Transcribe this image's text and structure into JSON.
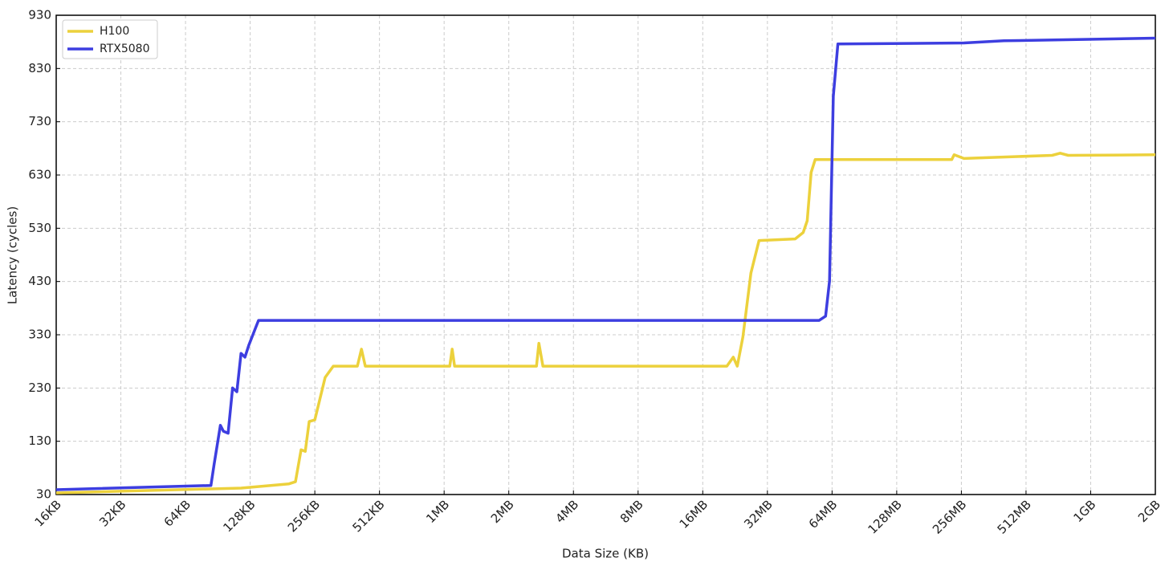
{
  "chart_data": {
    "type": "line",
    "xlabel": "Data Size (KB)",
    "ylabel": "Latency (cycles)",
    "xscale": "log",
    "grid": true,
    "legend": "upper left",
    "xlim": [
      16,
      2097152
    ],
    "ylim": [
      30,
      930
    ],
    "xticks": [
      {
        "value": 16,
        "label": "16KB"
      },
      {
        "value": 32,
        "label": "32KB"
      },
      {
        "value": 64,
        "label": "64KB"
      },
      {
        "value": 128,
        "label": "128KB"
      },
      {
        "value": 256,
        "label": "256KB"
      },
      {
        "value": 512,
        "label": "512KB"
      },
      {
        "value": 1024,
        "label": "1MB"
      },
      {
        "value": 2048,
        "label": "2MB"
      },
      {
        "value": 4096,
        "label": "4MB"
      },
      {
        "value": 8192,
        "label": "8MB"
      },
      {
        "value": 16384,
        "label": "16MB"
      },
      {
        "value": 32768,
        "label": "32MB"
      },
      {
        "value": 65536,
        "label": "64MB"
      },
      {
        "value": 131072,
        "label": "128MB"
      },
      {
        "value": 262144,
        "label": "256MB"
      },
      {
        "value": 524288,
        "label": "512MB"
      },
      {
        "value": 1048576,
        "label": "1GB"
      },
      {
        "value": 2097152,
        "label": "2GB"
      }
    ],
    "yticks": [
      30,
      130,
      230,
      330,
      430,
      530,
      630,
      730,
      830,
      930
    ],
    "series": [
      {
        "name": "H100",
        "color": "#ecd13c",
        "x": [
          16,
          116,
          194,
          208,
          221,
          231,
          241,
          256,
          286,
          312,
          404,
          422,
          440,
          1088,
          1116,
          1145,
          2757,
          2829,
          2953,
          21220,
          22720,
          23730,
          25200,
          27460,
          29950,
          44110,
          48080,
          50190,
          52390,
          54690,
          236400,
          242500,
          269340,
          693600,
          756000,
          823800,
          2097152
        ],
        "values": [
          33,
          42,
          50,
          54,
          114,
          111,
          167,
          170,
          250,
          271,
          271,
          303,
          271,
          271,
          303,
          271,
          271,
          314,
          271,
          271,
          288,
          271,
          326,
          446,
          507,
          510,
          522,
          544,
          635,
          659,
          659,
          668,
          661,
          667,
          671,
          667,
          668
        ]
      },
      {
        "name": "RTX5080",
        "color": "#3d3ee0",
        "x": [
          16,
          84,
          87,
          93,
          96,
          101,
          106,
          111,
          116,
          121,
          126,
          135,
          140,
          57060,
          61150,
          63760,
          66440,
          69740,
          269340,
          414080,
          2097152
        ],
        "values": [
          39,
          47,
          87,
          160,
          149,
          145,
          230,
          223,
          295,
          288,
          310,
          341,
          357,
          357,
          365,
          431,
          778,
          876,
          878,
          882,
          887
        ]
      }
    ]
  }
}
